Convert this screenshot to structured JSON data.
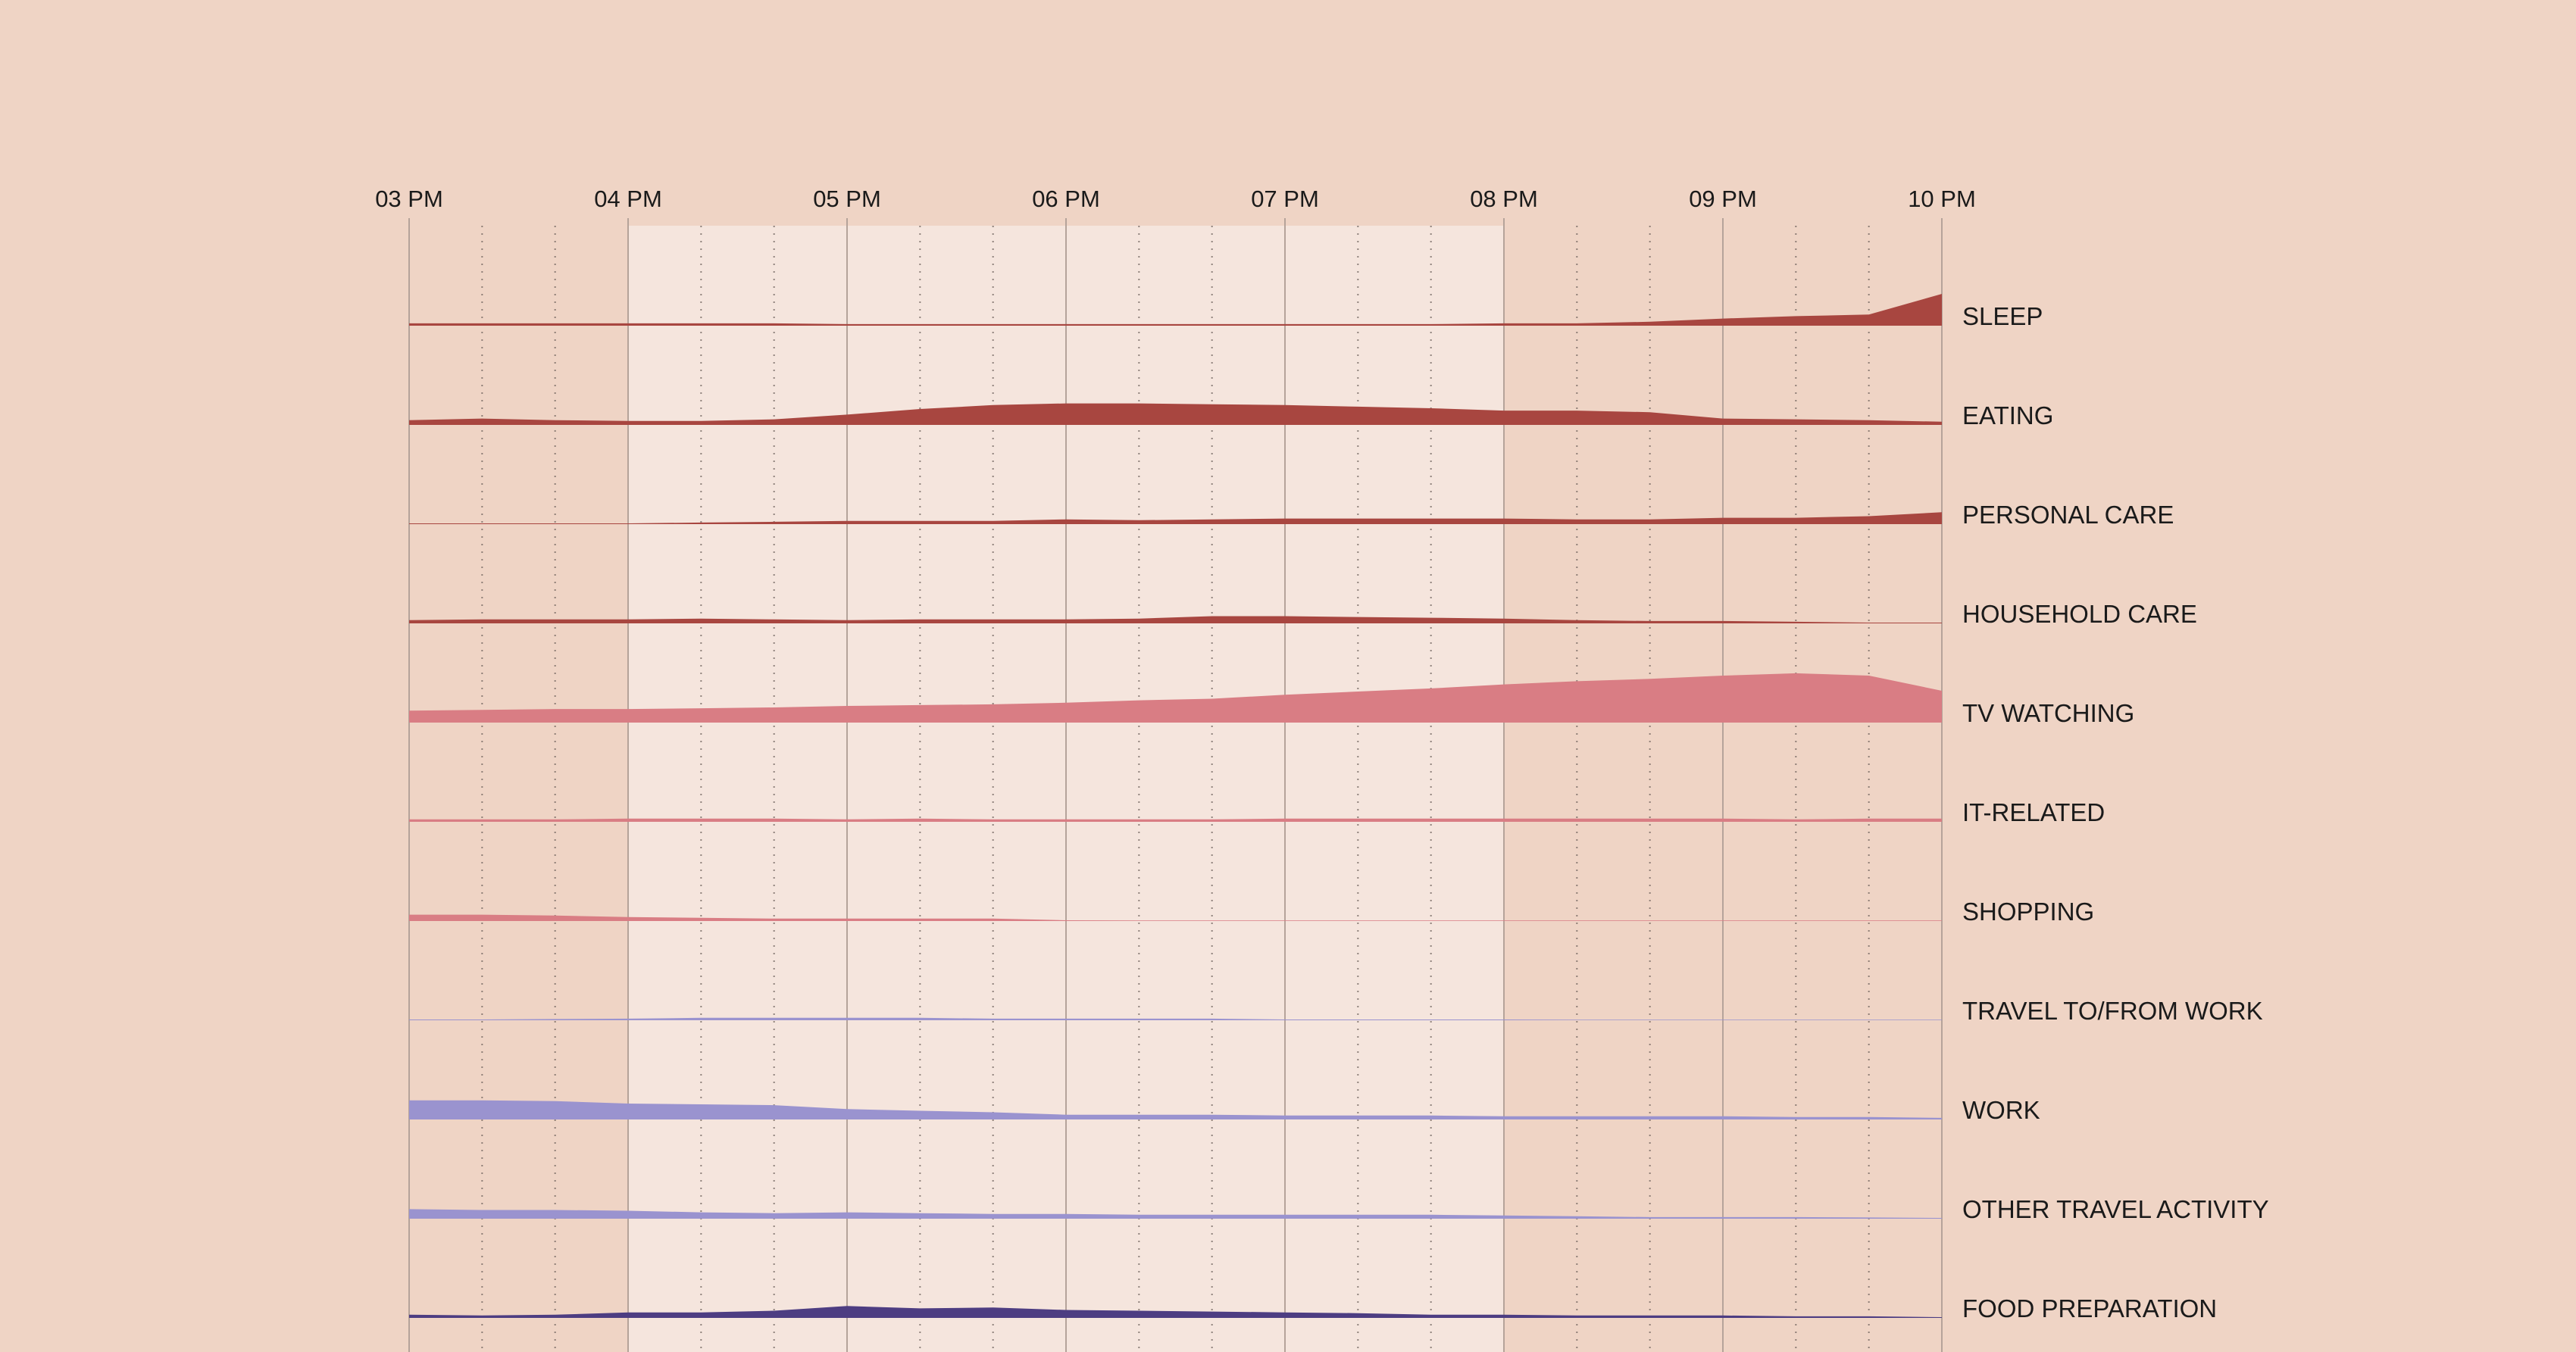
{
  "colors": {
    "background": "#efd4c5",
    "highlight_band": "#f5e5dd",
    "hour_grid": "#b5a39a",
    "quarter_grid": "#6e625c",
    "dark_red": "#a84640",
    "pink": "#d97d84",
    "lavender": "#9a93cf",
    "indigo": "#4d3d82"
  },
  "chart_data": {
    "type": "area",
    "subtype": "ridgeline",
    "title": "",
    "xlabel": "",
    "ylabel": "",
    "x_ticks": [
      "03 PM",
      "04 PM",
      "05 PM",
      "06 PM",
      "07 PM",
      "08 PM",
      "09 PM",
      "10 PM"
    ],
    "x_range_hours": [
      15,
      22
    ],
    "minor_grid_minutes": 20,
    "highlight_range_hours": [
      16,
      20
    ],
    "x": [
      15,
      15.333,
      15.667,
      16,
      16.333,
      16.667,
      17,
      17.333,
      17.667,
      18,
      18.333,
      18.667,
      19,
      19.333,
      19.667,
      20,
      20.333,
      20.667,
      21,
      21.333,
      21.667,
      22
    ],
    "y_unit": "relative share",
    "y_max": 10,
    "series": [
      {
        "name": "SLEEP",
        "color": "dark_red",
        "values": [
          0.3,
          0.3,
          0.3,
          0.3,
          0.3,
          0.3,
          0.2,
          0.2,
          0.2,
          0.2,
          0.2,
          0.2,
          0.2,
          0.2,
          0.2,
          0.3,
          0.3,
          0.5,
          0.9,
          1.2,
          1.4,
          4.0
        ]
      },
      {
        "name": "EATING",
        "color": "dark_red",
        "values": [
          0.6,
          0.8,
          0.6,
          0.5,
          0.5,
          0.7,
          1.3,
          2.0,
          2.5,
          2.7,
          2.7,
          2.6,
          2.5,
          2.3,
          2.1,
          1.8,
          1.8,
          1.6,
          0.8,
          0.7,
          0.6,
          0.4
        ]
      },
      {
        "name": "PERSONAL CARE",
        "color": "dark_red",
        "values": [
          0.1,
          0.1,
          0.1,
          0.1,
          0.2,
          0.3,
          0.4,
          0.4,
          0.4,
          0.6,
          0.5,
          0.6,
          0.7,
          0.7,
          0.7,
          0.7,
          0.6,
          0.6,
          0.8,
          0.8,
          1.0,
          1.5
        ]
      },
      {
        "name": "HOUSEHOLD CARE",
        "color": "dark_red",
        "values": [
          0.4,
          0.5,
          0.5,
          0.5,
          0.6,
          0.5,
          0.4,
          0.5,
          0.5,
          0.5,
          0.6,
          0.9,
          0.9,
          0.8,
          0.7,
          0.6,
          0.4,
          0.3,
          0.3,
          0.2,
          0.1,
          0.1
        ]
      },
      {
        "name": "TV WATCHING",
        "color": "pink",
        "values": [
          1.5,
          1.6,
          1.7,
          1.7,
          1.8,
          1.9,
          2.1,
          2.2,
          2.3,
          2.5,
          2.8,
          3.0,
          3.5,
          3.9,
          4.3,
          4.8,
          5.2,
          5.5,
          5.9,
          6.2,
          5.9,
          4.0
        ]
      },
      {
        "name": "IT-RELATED",
        "color": "pink",
        "values": [
          0.3,
          0.3,
          0.3,
          0.4,
          0.4,
          0.4,
          0.3,
          0.4,
          0.3,
          0.3,
          0.3,
          0.3,
          0.4,
          0.4,
          0.4,
          0.4,
          0.4,
          0.4,
          0.4,
          0.3,
          0.4,
          0.4
        ]
      },
      {
        "name": "SHOPPING",
        "color": "pink",
        "values": [
          0.8,
          0.8,
          0.7,
          0.5,
          0.4,
          0.3,
          0.3,
          0.3,
          0.3,
          0.1,
          0.05,
          0.05,
          0.05,
          0.03,
          0.03,
          0.05,
          0.05,
          0.03,
          0.03,
          0,
          0,
          0
        ]
      },
      {
        "name": "TRAVEL TO/FROM WORK",
        "color": "lavender",
        "values": [
          0.1,
          0.1,
          0.15,
          0.2,
          0.3,
          0.3,
          0.3,
          0.3,
          0.2,
          0.2,
          0.2,
          0.2,
          0.1,
          0.1,
          0.1,
          0.1,
          0.05,
          0.05,
          0.05,
          0.05,
          0.05,
          0.05
        ]
      },
      {
        "name": "WORK",
        "color": "lavender",
        "values": [
          2.4,
          2.4,
          2.3,
          2.0,
          1.9,
          1.8,
          1.3,
          1.1,
          0.9,
          0.6,
          0.6,
          0.6,
          0.5,
          0.5,
          0.5,
          0.4,
          0.4,
          0.4,
          0.4,
          0.3,
          0.3,
          0.2
        ]
      },
      {
        "name": "OTHER TRAVEL ACTIVITY",
        "color": "lavender",
        "values": [
          1.2,
          1.1,
          1.1,
          1.0,
          0.8,
          0.7,
          0.8,
          0.7,
          0.6,
          0.6,
          0.5,
          0.5,
          0.5,
          0.5,
          0.5,
          0.4,
          0.3,
          0.2,
          0.2,
          0.2,
          0.15,
          0.1
        ]
      },
      {
        "name": "FOOD PREPARATION",
        "color": "indigo",
        "values": [
          0.4,
          0.3,
          0.4,
          0.7,
          0.7,
          0.9,
          1.5,
          1.2,
          1.3,
          1.0,
          0.9,
          0.8,
          0.7,
          0.6,
          0.4,
          0.4,
          0.3,
          0.3,
          0.3,
          0.2,
          0.2,
          0.1
        ]
      }
    ]
  }
}
